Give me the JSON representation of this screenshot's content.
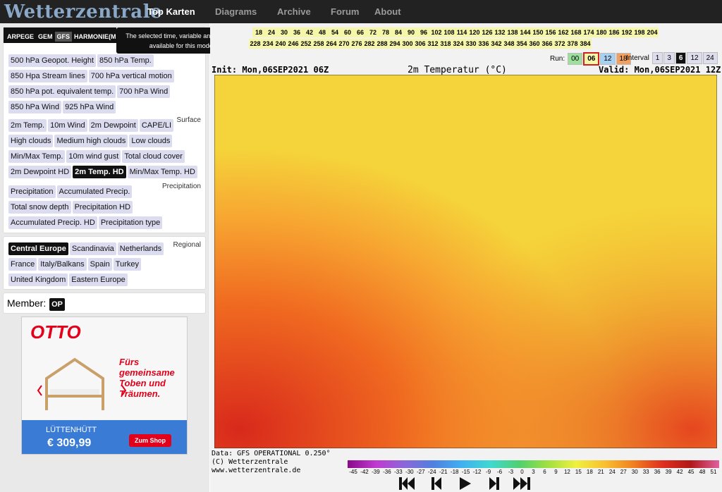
{
  "nav": {
    "logo": "Wetterzentrale",
    "items": [
      "Top Karten",
      "Diagrams",
      "Archive",
      "Forum",
      "About"
    ]
  },
  "models": {
    "tabs": [
      "ARPEGE",
      "GEM",
      "GFS",
      "HARMONIE(ME)"
    ],
    "tooltip": "The selected time, variable and region is available for this model."
  },
  "upper_air": [
    "500 hPa Geopot. Height",
    "850 hPa Temp.",
    "850 Hpa Stream lines",
    "700 hPa vertical motion",
    "850 hPa pot. equivalent temp.",
    "700 hPa Wind",
    "850 hPa Wind",
    "925 hPa Wind"
  ],
  "surface": {
    "label": "Surface",
    "items": [
      {
        "label": "2m Temp."
      },
      {
        "label": "10m Wind"
      },
      {
        "label": "2m Dewpoint"
      },
      {
        "label": "CAPE/LI"
      },
      {
        "label": "High clouds"
      },
      {
        "label": "Medium high clouds"
      },
      {
        "label": "Low clouds"
      },
      {
        "label": "Min/Max Temp."
      },
      {
        "label": "10m wind gust"
      },
      {
        "label": "Total cloud cover"
      },
      {
        "label": "2m Dewpoint HD"
      },
      {
        "label": "2m Temp. HD",
        "active": true
      },
      {
        "label": "Min/Max Temp. HD"
      }
    ]
  },
  "precipitation": {
    "label": "Precipitation",
    "items": [
      {
        "label": "Precipitation"
      },
      {
        "label": "Accumulated Precip."
      },
      {
        "label": "Total snow depth"
      },
      {
        "label": "Precipitation HD"
      },
      {
        "label": "Accumulated Precip. HD"
      },
      {
        "label": "Precipitation type"
      }
    ]
  },
  "regional": {
    "label": "Regional",
    "items": [
      {
        "label": "Central Europe",
        "active": true
      },
      {
        "label": "Scandinavia"
      },
      {
        "label": "Netherlands"
      },
      {
        "label": "France"
      },
      {
        "label": "Italy/Balkans"
      },
      {
        "label": "Spain"
      },
      {
        "label": "Turkey"
      },
      {
        "label": "United Kingdom"
      },
      {
        "label": "Eastern Europe"
      }
    ]
  },
  "member": {
    "label": "Member:",
    "value": "OP"
  },
  "ad": {
    "brand": "OTTO",
    "slogan": "Fürs gemeinsame Toben und Träumen.",
    "product": "LÜTTENHÜTT",
    "price": "€ 309,99",
    "button": "Zum Shop"
  },
  "hours": {
    "row1": [
      18,
      24,
      30,
      36,
      42,
      48,
      54,
      60,
      66,
      72,
      78,
      84,
      90,
      96,
      102,
      108,
      114,
      120,
      126,
      132,
      138,
      144,
      150,
      156,
      162,
      168,
      174,
      180,
      186,
      192,
      198,
      204
    ],
    "row2": [
      228,
      234,
      240,
      246,
      252,
      258,
      264,
      270,
      276,
      282,
      288,
      294,
      300,
      306,
      312,
      318,
      324,
      330,
      336,
      342,
      348,
      354,
      360,
      366,
      372,
      378,
      384
    ]
  },
  "run": {
    "label": "Run:",
    "options": [
      "00",
      "06",
      "12",
      "18"
    ]
  },
  "interval": {
    "label": "Interval",
    "options": [
      "1",
      "3",
      "6",
      "12",
      "24"
    ]
  },
  "map": {
    "init": "Init: Mon,06SEP2021 06Z",
    "title": "2m Temperatur (°C)",
    "valid": "Valid: Mon,06SEP2021 12Z",
    "footer": [
      "Data: GFS OPERATIONAL 0.250°",
      "(C) Wetterzentrale",
      "www.wetterzentrale.de"
    ],
    "scale": [
      -45,
      -42,
      -39,
      -36,
      -33,
      -30,
      -27,
      -24,
      -21,
      -18,
      -15,
      -12,
      -9,
      -6,
      -3,
      0,
      3,
      6,
      9,
      12,
      15,
      18,
      21,
      24,
      27,
      30,
      33,
      36,
      39,
      42,
      45,
      48,
      51
    ]
  }
}
